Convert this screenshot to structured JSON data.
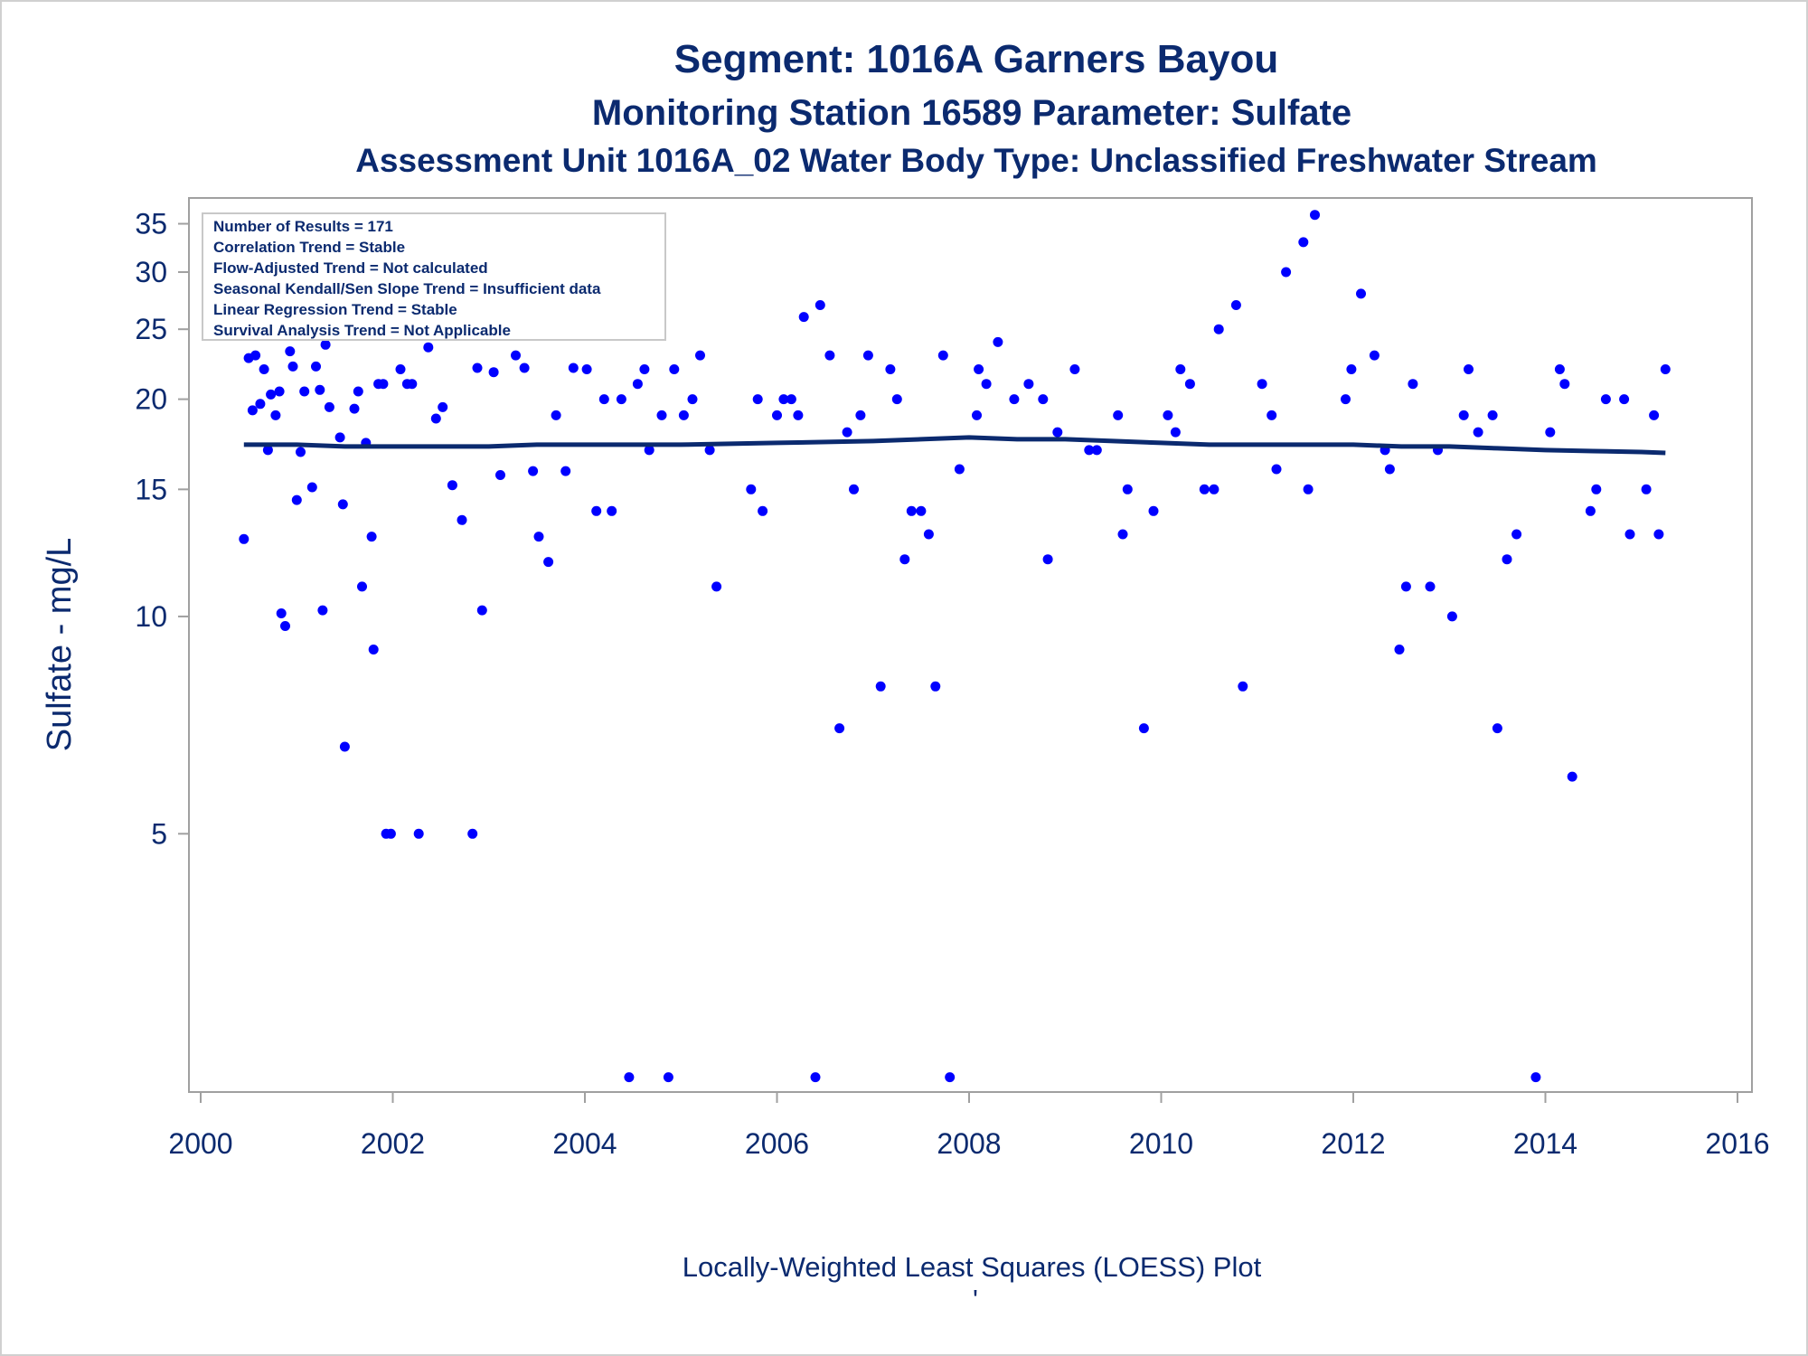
{
  "title": "Segment: 1016A  Garners Bayou",
  "subtitle": "Monitoring Station 16589 Parameter: Sulfate",
  "subtitle2": "Assessment Unit 1016A_02   Water Body Type: Unclassified Freshwater Stream",
  "footnote": "Locally-Weighted Least Squares (LOESS) Plot",
  "footnote_mark": "'",
  "inset_lines": [
    "Number of Results = 171",
    "Correlation Trend = Stable",
    "Flow-Adjusted Trend = Not calculated",
    "Seasonal Kendall/Sen Slope Trend = Insufficient data",
    "Linear Regression Trend = Stable",
    "Survival Analysis Trend = Not Applicable"
  ],
  "colors": {
    "points": "#0000ff",
    "loess": "#0b2a6f",
    "text": "#0b2a6f",
    "frame": "#a0a0a0"
  },
  "chart_data": {
    "type": "scatter",
    "ylabel": "Sulfate - mg/L",
    "xlabel": "",
    "y_scale": "log",
    "xlim": [
      2000,
      2016
    ],
    "ylim": [
      2.2,
      38
    ],
    "x_ticks": [
      2000,
      2002,
      2004,
      2006,
      2008,
      2010,
      2012,
      2014,
      2016
    ],
    "y_ticks": [
      5,
      10,
      15,
      20,
      25,
      30,
      35
    ],
    "grid": false,
    "points": [
      [
        2000.45,
        12.8
      ],
      [
        2000.5,
        22.8
      ],
      [
        2000.54,
        19.3
      ],
      [
        2000.57,
        23.0
      ],
      [
        2000.62,
        19.7
      ],
      [
        2000.66,
        22.0
      ],
      [
        2000.7,
        17.0
      ],
      [
        2000.73,
        20.3
      ],
      [
        2000.78,
        19.0
      ],
      [
        2000.82,
        20.5
      ],
      [
        2000.84,
        10.1
      ],
      [
        2000.88,
        9.7
      ],
      [
        2000.93,
        23.3
      ],
      [
        2000.96,
        22.2
      ],
      [
        2001.0,
        14.5
      ],
      [
        2001.04,
        16.9
      ],
      [
        2001.08,
        20.5
      ],
      [
        2001.12,
        25.5
      ],
      [
        2001.16,
        15.1
      ],
      [
        2001.2,
        22.2
      ],
      [
        2001.24,
        20.6
      ],
      [
        2001.27,
        10.2
      ],
      [
        2001.3,
        23.8
      ],
      [
        2001.34,
        19.5
      ],
      [
        2001.45,
        17.7
      ],
      [
        2001.48,
        14.3
      ],
      [
        2001.5,
        6.6
      ],
      [
        2001.54,
        24.5
      ],
      [
        2001.6,
        19.4
      ],
      [
        2001.64,
        20.5
      ],
      [
        2001.68,
        11.0
      ],
      [
        2001.72,
        17.4
      ],
      [
        2001.78,
        12.9
      ],
      [
        2001.8,
        9.0
      ],
      [
        2001.85,
        21.0
      ],
      [
        2001.9,
        21.0
      ],
      [
        2001.93,
        5.0
      ],
      [
        2001.98,
        5.0
      ],
      [
        2002.08,
        22.0
      ],
      [
        2002.15,
        21.0
      ],
      [
        2002.2,
        21.0
      ],
      [
        2002.27,
        5.0
      ],
      [
        2002.37,
        23.6
      ],
      [
        2002.45,
        18.8
      ],
      [
        2002.52,
        19.5
      ],
      [
        2002.62,
        15.2
      ],
      [
        2002.72,
        13.6
      ],
      [
        2002.83,
        5.0
      ],
      [
        2002.88,
        22.1
      ],
      [
        2002.93,
        10.2
      ],
      [
        2003.05,
        21.8
      ],
      [
        2003.12,
        15.7
      ],
      [
        2003.28,
        23.0
      ],
      [
        2003.37,
        22.1
      ],
      [
        2003.46,
        15.9
      ],
      [
        2003.52,
        12.9
      ],
      [
        2003.62,
        11.9
      ],
      [
        2003.7,
        19.0
      ],
      [
        2003.8,
        15.9
      ],
      [
        2003.88,
        22.1
      ],
      [
        2003.95,
        25.0
      ],
      [
        2004.02,
        22.0
      ],
      [
        2004.12,
        14.0
      ],
      [
        2004.2,
        20.0
      ],
      [
        2004.28,
        14.0
      ],
      [
        2004.38,
        20.0
      ],
      [
        2004.46,
        2.3
      ],
      [
        2004.55,
        21.0
      ],
      [
        2004.62,
        22.0
      ],
      [
        2004.67,
        17.0
      ],
      [
        2004.8,
        19.0
      ],
      [
        2004.87,
        2.3
      ],
      [
        2004.93,
        22.0
      ],
      [
        2005.03,
        19.0
      ],
      [
        2005.12,
        20.0
      ],
      [
        2005.2,
        23.0
      ],
      [
        2005.3,
        17.0
      ],
      [
        2005.37,
        11.0
      ],
      [
        2005.73,
        15.0
      ],
      [
        2005.8,
        20.0
      ],
      [
        2005.85,
        14.0
      ],
      [
        2006.0,
        19.0
      ],
      [
        2006.07,
        20.0
      ],
      [
        2006.15,
        20.0
      ],
      [
        2006.22,
        19.0
      ],
      [
        2006.28,
        26.0
      ],
      [
        2006.4,
        2.3
      ],
      [
        2006.45,
        27.0
      ],
      [
        2006.55,
        23.0
      ],
      [
        2006.65,
        7.0
      ],
      [
        2006.73,
        18.0
      ],
      [
        2006.8,
        15.0
      ],
      [
        2006.87,
        19.0
      ],
      [
        2006.95,
        23.0
      ],
      [
        2007.08,
        8.0
      ],
      [
        2007.18,
        22.0
      ],
      [
        2007.25,
        20.0
      ],
      [
        2007.33,
        12.0
      ],
      [
        2007.4,
        14.0
      ],
      [
        2007.5,
        14.0
      ],
      [
        2007.58,
        13.0
      ],
      [
        2007.65,
        8.0
      ],
      [
        2007.73,
        23.0
      ],
      [
        2007.8,
        2.3
      ],
      [
        2007.9,
        16.0
      ],
      [
        2008.08,
        19.0
      ],
      [
        2008.1,
        22.0
      ],
      [
        2008.18,
        21.0
      ],
      [
        2008.3,
        24.0
      ],
      [
        2008.47,
        20.0
      ],
      [
        2008.62,
        21.0
      ],
      [
        2008.77,
        20.0
      ],
      [
        2008.82,
        12.0
      ],
      [
        2008.92,
        18.0
      ],
      [
        2009.1,
        22.0
      ],
      [
        2009.25,
        17.0
      ],
      [
        2009.33,
        17.0
      ],
      [
        2009.55,
        19.0
      ],
      [
        2009.6,
        13.0
      ],
      [
        2009.65,
        15.0
      ],
      [
        2009.82,
        7.0
      ],
      [
        2009.92,
        14.0
      ],
      [
        2010.07,
        19.0
      ],
      [
        2010.15,
        18.0
      ],
      [
        2010.2,
        22.0
      ],
      [
        2010.3,
        21.0
      ],
      [
        2010.45,
        15.0
      ],
      [
        2010.55,
        15.0
      ],
      [
        2010.6,
        25.0
      ],
      [
        2010.78,
        27.0
      ],
      [
        2010.85,
        8.0
      ],
      [
        2011.05,
        21.0
      ],
      [
        2011.15,
        19.0
      ],
      [
        2011.2,
        16.0
      ],
      [
        2011.3,
        30.0
      ],
      [
        2011.48,
        33.0
      ],
      [
        2011.53,
        15.0
      ],
      [
        2011.6,
        36.0
      ],
      [
        2011.92,
        20.0
      ],
      [
        2011.98,
        22.0
      ],
      [
        2012.08,
        28.0
      ],
      [
        2012.22,
        23.0
      ],
      [
        2012.33,
        17.0
      ],
      [
        2012.38,
        16.0
      ],
      [
        2012.48,
        9.0
      ],
      [
        2012.55,
        11.0
      ],
      [
        2012.62,
        21.0
      ],
      [
        2012.8,
        11.0
      ],
      [
        2012.88,
        17.0
      ],
      [
        2013.03,
        10.0
      ],
      [
        2013.15,
        19.0
      ],
      [
        2013.2,
        22.0
      ],
      [
        2013.3,
        18.0
      ],
      [
        2013.45,
        19.0
      ],
      [
        2013.5,
        7.0
      ],
      [
        2013.6,
        12.0
      ],
      [
        2013.7,
        13.0
      ],
      [
        2013.9,
        2.3
      ],
      [
        2014.05,
        18.0
      ],
      [
        2014.15,
        22.0
      ],
      [
        2014.2,
        21.0
      ],
      [
        2014.28,
        6.0
      ],
      [
        2014.47,
        14.0
      ],
      [
        2014.53,
        15.0
      ],
      [
        2014.63,
        20.0
      ],
      [
        2014.82,
        20.0
      ],
      [
        2014.88,
        13.0
      ],
      [
        2015.05,
        15.0
      ],
      [
        2015.13,
        19.0
      ],
      [
        2015.18,
        13.0
      ],
      [
        2015.25,
        22.0
      ]
    ],
    "loess": [
      [
        2000.45,
        17.3
      ],
      [
        2001.0,
        17.3
      ],
      [
        2001.5,
        17.2
      ],
      [
        2002.0,
        17.2
      ],
      [
        2003.0,
        17.2
      ],
      [
        2003.5,
        17.3
      ],
      [
        2004.0,
        17.3
      ],
      [
        2005.0,
        17.3
      ],
      [
        2006.0,
        17.4
      ],
      [
        2007.0,
        17.5
      ],
      [
        2007.5,
        17.6
      ],
      [
        2008.0,
        17.7
      ],
      [
        2008.5,
        17.6
      ],
      [
        2009.0,
        17.6
      ],
      [
        2009.5,
        17.5
      ],
      [
        2010.0,
        17.4
      ],
      [
        2010.5,
        17.3
      ],
      [
        2011.0,
        17.3
      ],
      [
        2011.5,
        17.3
      ],
      [
        2012.0,
        17.3
      ],
      [
        2012.5,
        17.2
      ],
      [
        2013.0,
        17.2
      ],
      [
        2013.5,
        17.1
      ],
      [
        2014.0,
        17.0
      ],
      [
        2014.5,
        16.95
      ],
      [
        2015.0,
        16.9
      ],
      [
        2015.25,
        16.85
      ]
    ]
  }
}
